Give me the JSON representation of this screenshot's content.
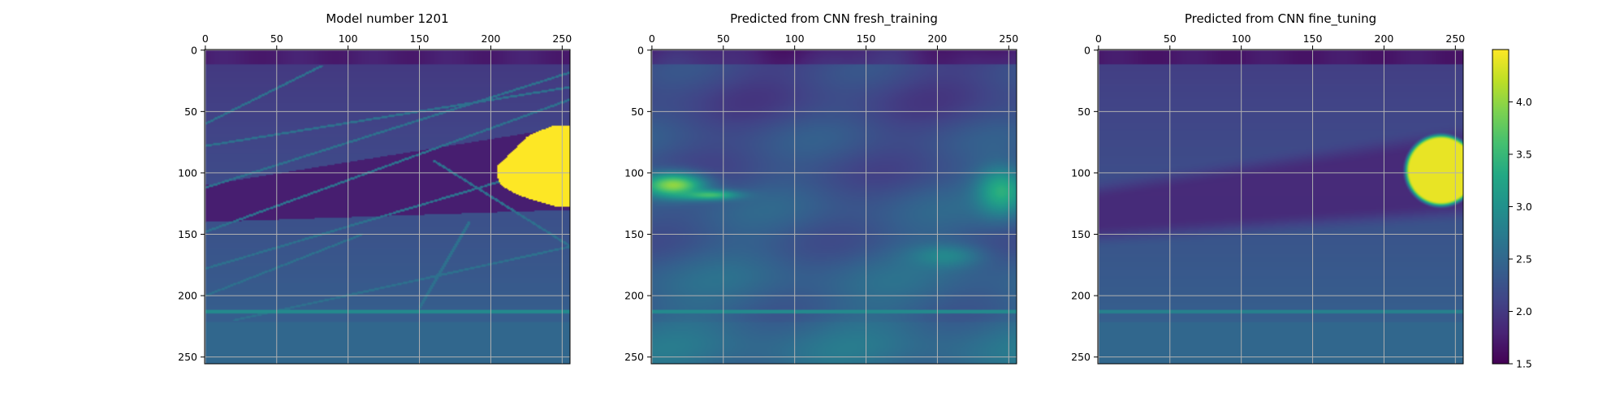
{
  "chart_data": [
    {
      "type": "heatmap",
      "title": "Model number 1201",
      "x_ticks": [
        0,
        50,
        100,
        150,
        200,
        250
      ],
      "y_ticks": [
        0,
        50,
        100,
        150,
        200,
        250
      ],
      "xlim": [
        0,
        256
      ],
      "ylim": [
        256,
        0
      ],
      "x_axis_position": "top",
      "grid": true,
      "colormap": "viridis",
      "features": {
        "top_layer": {
          "rows": [
            0,
            12
          ],
          "value": 1.75
        },
        "background_gradient": {
          "from_value": 2.0,
          "to_value": 2.4,
          "rows": [
            12,
            222
          ]
        },
        "low_velocity_band": {
          "value": 1.75,
          "row_at_x0": [
            110,
            140
          ],
          "row_at_x256": [
            62,
            130
          ]
        },
        "high_velocity_body": {
          "value": 4.5,
          "x_range": [
            205,
            256
          ],
          "y_range": [
            62,
            130
          ]
        },
        "reflector_lines_value": 2.6,
        "horizontal_line": {
          "row": 213,
          "value": 2.9
        },
        "bottom_layer": {
          "rows": [
            222,
            256
          ],
          "value": 2.5
        }
      }
    },
    {
      "type": "heatmap",
      "title": "Predicted from CNN fresh_training",
      "x_ticks": [
        0,
        50,
        100,
        150,
        200,
        250
      ],
      "y_ticks": [
        0,
        50,
        100,
        150,
        200,
        250
      ],
      "xlim": [
        0,
        256
      ],
      "ylim": [
        256,
        0
      ],
      "x_axis_position": "top",
      "grid": true,
      "colormap": "viridis",
      "features": {
        "top_layer": {
          "rows": [
            0,
            12
          ],
          "value": 1.8
        },
        "background_gradient": {
          "from_value": 2.1,
          "to_value": 2.5,
          "rows": [
            12,
            222
          ]
        },
        "left_bright_blob": {
          "x": 15,
          "y": 110,
          "value": 4.0
        },
        "right_bright_blob": {
          "x": 245,
          "y": 115,
          "value": 3.4
        },
        "horizontal_line": {
          "row": 213,
          "value": 2.9
        },
        "bottom_layer": {
          "rows": [
            222,
            256
          ],
          "value": 2.55
        }
      }
    },
    {
      "type": "heatmap",
      "title": "Predicted from CNN fine_tuning",
      "x_ticks": [
        0,
        50,
        100,
        150,
        200,
        250
      ],
      "y_ticks": [
        0,
        50,
        100,
        150,
        200,
        250
      ],
      "xlim": [
        0,
        256
      ],
      "ylim": [
        256,
        0
      ],
      "x_axis_position": "top",
      "grid": true,
      "colormap": "viridis",
      "features": {
        "top_layer": {
          "rows": [
            0,
            12
          ],
          "value": 1.7
        },
        "background_gradient": {
          "from_value": 2.05,
          "to_value": 2.4,
          "rows": [
            12,
            222
          ]
        },
        "low_velocity_band": {
          "value": 1.8,
          "row_at_x0": [
            115,
            150
          ],
          "row_at_x256": [
            70,
            130
          ]
        },
        "high_velocity_body": {
          "value": 4.4,
          "x_range": [
            210,
            256
          ],
          "y_range": [
            65,
            130
          ]
        },
        "horizontal_line": {
          "row": 213,
          "value": 2.8
        },
        "bottom_layer": {
          "rows": [
            222,
            256
          ],
          "value": 2.5
        }
      }
    }
  ],
  "colorbar": {
    "colormap": "viridis",
    "range": [
      1.5,
      4.5
    ],
    "ticks": [
      "1.5",
      "2.0",
      "2.5",
      "3.0",
      "3.5",
      "4.0"
    ]
  }
}
